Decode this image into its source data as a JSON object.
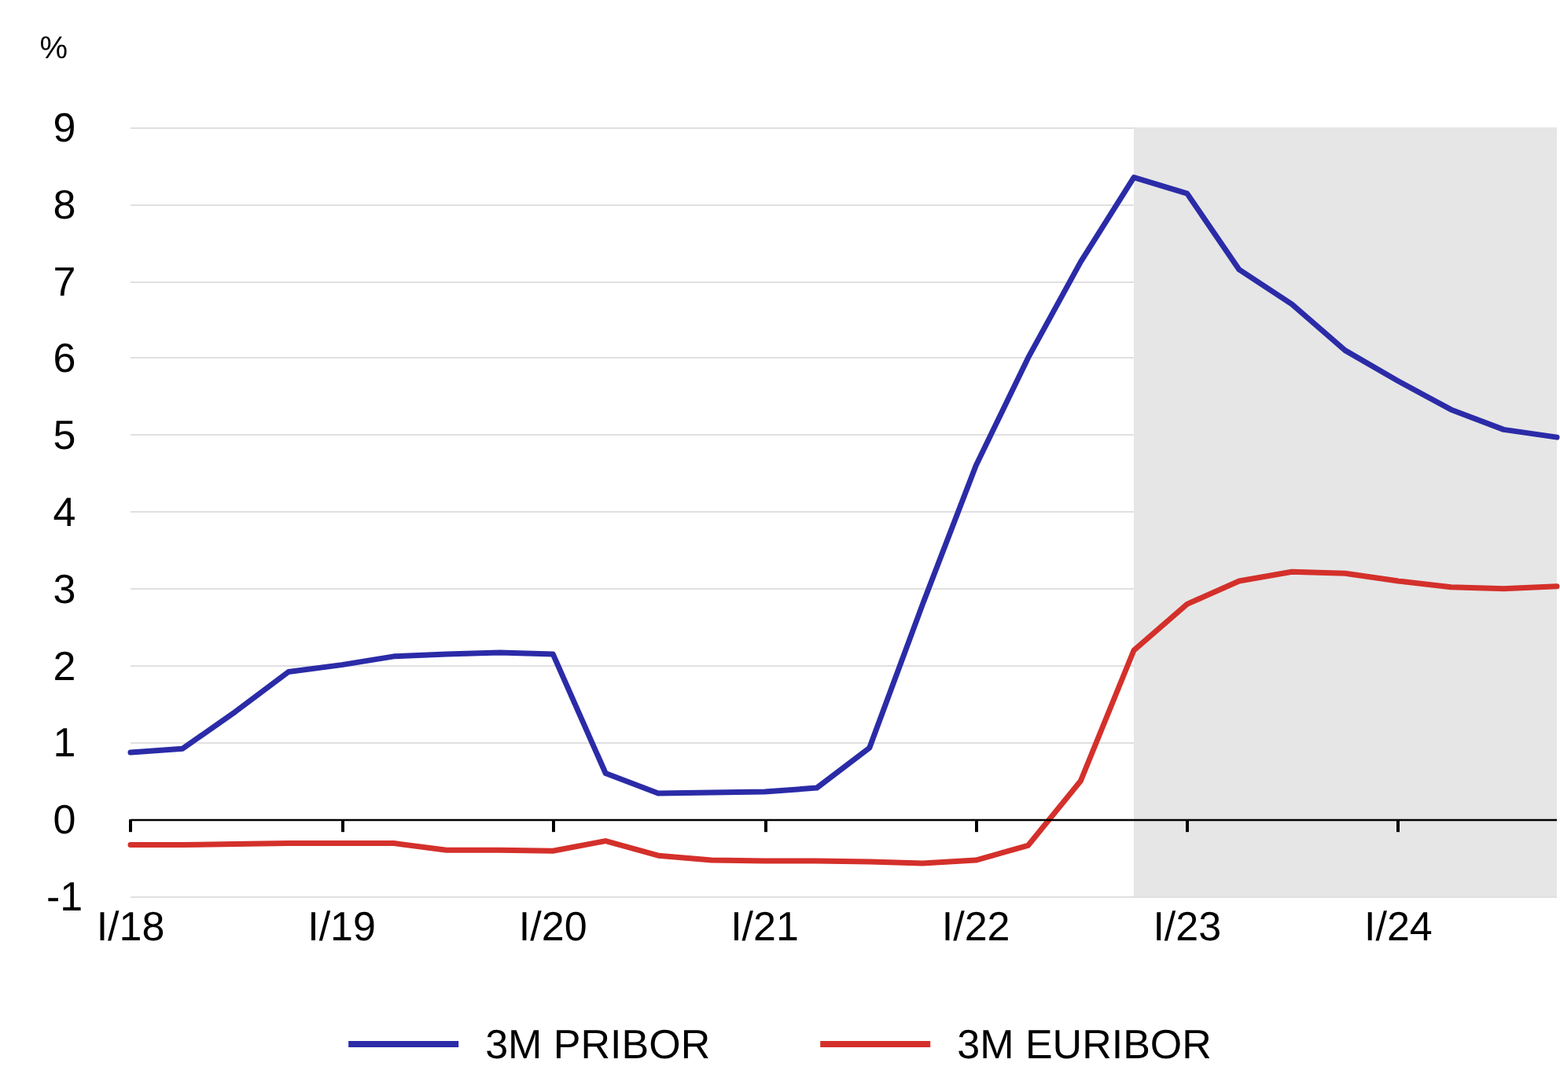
{
  "chart_data": {
    "type": "line",
    "ylabel": "%",
    "x": [
      "2018-01",
      "2018-04",
      "2018-07",
      "2018-10",
      "2019-01",
      "2019-04",
      "2019-07",
      "2019-10",
      "2020-01",
      "2020-04",
      "2020-07",
      "2020-10",
      "2021-01",
      "2021-04",
      "2021-07",
      "2021-10",
      "2022-01",
      "2022-04",
      "2022-07",
      "2022-10",
      "2023-01",
      "2023-04",
      "2023-07",
      "2023-10",
      "2024-01",
      "2024-04",
      "2024-07",
      "2024-10"
    ],
    "series": [
      {
        "name": "3M PRIBOR",
        "color": "#2b2ba8",
        "values": [
          0.87,
          0.92,
          1.4,
          1.92,
          2.01,
          2.12,
          2.15,
          2.17,
          2.15,
          0.6,
          0.34,
          0.35,
          0.36,
          0.41,
          0.93,
          2.8,
          4.6,
          6.0,
          7.25,
          8.35,
          8.14,
          7.15,
          6.7,
          6.1,
          5.7,
          5.33,
          5.07,
          4.97
        ]
      },
      {
        "name": "3M EURIBOR",
        "color": "#d4302b",
        "values": [
          -0.33,
          -0.33,
          -0.32,
          -0.31,
          -0.31,
          -0.31,
          -0.4,
          -0.4,
          -0.41,
          -0.28,
          -0.47,
          -0.53,
          -0.54,
          -0.54,
          -0.55,
          -0.57,
          -0.53,
          -0.34,
          0.5,
          2.2,
          2.8,
          3.1,
          3.22,
          3.2,
          3.1,
          3.02,
          3.0,
          3.03
        ]
      }
    ],
    "xlim": [
      "2018-01",
      "2024-10"
    ],
    "xticks": [
      {
        "value": "2018-01",
        "label": "I/18"
      },
      {
        "value": "2019-01",
        "label": "I/19"
      },
      {
        "value": "2020-01",
        "label": "I/20"
      },
      {
        "value": "2021-01",
        "label": "I/21"
      },
      {
        "value": "2022-01",
        "label": "I/22"
      },
      {
        "value": "2023-01",
        "label": "I/23"
      },
      {
        "value": "2024-01",
        "label": "I/24"
      }
    ],
    "ylim": [
      -1,
      9
    ],
    "yticks": [
      -1,
      0,
      1,
      2,
      3,
      4,
      5,
      6,
      7,
      8,
      9
    ],
    "ref_lines": [
      {
        "axis": "y",
        "value": 0,
        "color": "#000000"
      }
    ],
    "bands": [
      {
        "axis": "x",
        "from": "2022-10",
        "to": "2024-10",
        "color": "#e6e6e6"
      }
    ],
    "grid": "y",
    "legend": "bottom",
    "line_style": "solid",
    "marker": "none"
  }
}
